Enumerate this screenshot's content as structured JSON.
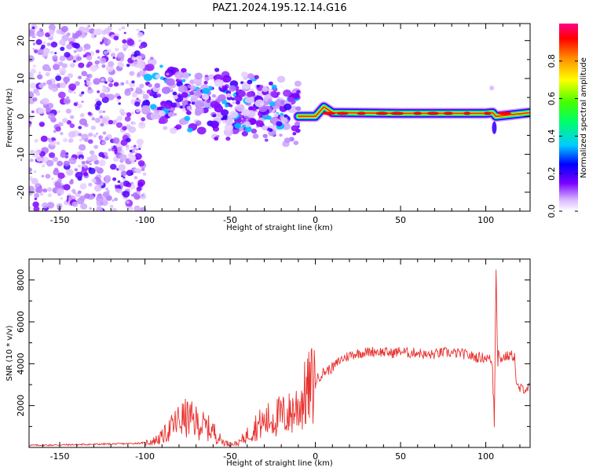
{
  "title": "PAZ1.2024.195.12.14.G16",
  "chart_data": [
    {
      "type": "heatmap",
      "xlabel": "Height of straight line (km)",
      "ylabel": "Frequency (Hz)",
      "xlim": [
        -168,
        126
      ],
      "ylim": [
        -25,
        24.5
      ],
      "xticks": [
        -150,
        -100,
        -50,
        0,
        50,
        100
      ],
      "yticks": [
        -20,
        -10,
        0,
        10,
        20
      ],
      "colorbar": {
        "label": "Normalized spectral amplitude",
        "ticks": [
          0.0,
          0.2,
          0.4,
          0.6,
          0.8
        ],
        "range": [
          0,
          1
        ],
        "colormap": [
          "#ffffff",
          "#d9b8ff",
          "#7a00ff",
          "#0000ff",
          "#00ccff",
          "#00ff66",
          "#44ff00",
          "#ffff00",
          "#ff8800",
          "#ff0000",
          "#ff0088"
        ]
      },
      "features": [
        {
          "name": "diffuse scatter",
          "x_range": [
            -168,
            -100
          ],
          "freq_range": [
            -25,
            24
          ],
          "amplitude": 0.15
        },
        {
          "name": "irregular blobs",
          "x_range": [
            -100,
            -10
          ],
          "freq_range": [
            -16,
            13
          ],
          "amplitude": 0.35
        },
        {
          "name": "tone ridge",
          "x_range": [
            -10,
            126
          ],
          "freq": [
            [
              -10,
              0
            ],
            [
              0,
              0
            ],
            [
              5,
              2.5
            ],
            [
              10,
              1
            ],
            [
              50,
              0.8
            ],
            [
              100,
              0.8
            ],
            [
              104,
              1
            ],
            [
              106,
              0
            ],
            [
              126,
              1
            ]
          ],
          "amplitude": 0.85
        }
      ]
    },
    {
      "type": "line",
      "xlabel": "Height of straight line (km)",
      "ylabel": "SNR (10 * v/v)",
      "xlim": [
        -168,
        126
      ],
      "ylim": [
        0,
        9000
      ],
      "xticks": [
        -150,
        -100,
        -50,
        0,
        50,
        100
      ],
      "yticks": [
        2000,
        4000,
        6000,
        8000
      ],
      "color": "#e8302d",
      "x": [
        -168,
        -150,
        -130,
        -110,
        -100,
        -95,
        -90,
        -85,
        -80,
        -75,
        -70,
        -65,
        -60,
        -55,
        -50,
        -45,
        -40,
        -35,
        -30,
        -25,
        -20,
        -15,
        -10,
        -5,
        0,
        5,
        10,
        15,
        20,
        25,
        30,
        35,
        40,
        45,
        50,
        55,
        60,
        65,
        70,
        75,
        80,
        85,
        90,
        95,
        100,
        103,
        104,
        105,
        106,
        107,
        108,
        110,
        115,
        117,
        118,
        120,
        126
      ],
      "y": [
        100,
        120,
        150,
        180,
        220,
        300,
        500,
        900,
        1300,
        1400,
        1200,
        1000,
        800,
        300,
        150,
        200,
        600,
        1000,
        1200,
        1400,
        1500,
        1600,
        2000,
        2600,
        3200,
        3600,
        3800,
        4200,
        4400,
        4500,
        4550,
        4600,
        4550,
        4500,
        4600,
        4500,
        4550,
        4400,
        4450,
        4550,
        4500,
        4500,
        4400,
        4300,
        4300,
        4200,
        3800,
        1500,
        8800,
        4500,
        4200,
        4300,
        4400,
        4350,
        2900,
        2800,
        2850
      ]
    }
  ]
}
